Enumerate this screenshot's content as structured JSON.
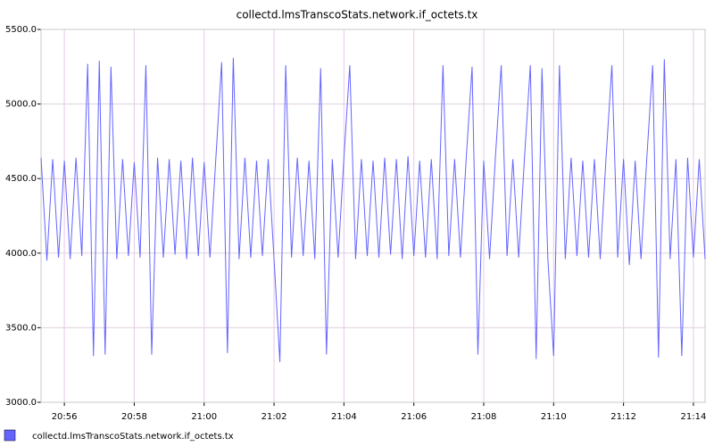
{
  "chart_data": {
    "type": "line",
    "title": "collectd.lmsTranscoStats.network.if_octets.tx",
    "categories": [
      null,
      null,
      null,
      null,
      "20:56",
      null,
      null,
      null,
      null,
      null,
      null,
      null,
      null,
      null,
      null,
      null,
      "20:58",
      null,
      null,
      null,
      null,
      null,
      null,
      null,
      null,
      null,
      null,
      null,
      "21:00",
      null,
      null,
      null,
      null,
      null,
      null,
      null,
      null,
      null,
      null,
      null,
      "21:02",
      null,
      null,
      null,
      null,
      null,
      null,
      null,
      null,
      null,
      null,
      null,
      "21:04",
      null,
      null,
      null,
      null,
      null,
      null,
      null,
      null,
      null,
      null,
      null,
      "21:06",
      null,
      null,
      null,
      null,
      null,
      null,
      null,
      null,
      null,
      null,
      null,
      "21:08",
      null,
      null,
      null,
      null,
      null,
      null,
      null,
      null,
      null,
      null,
      null,
      "21:10",
      null,
      null,
      null,
      null,
      null,
      null,
      null,
      null,
      null,
      null,
      null,
      "21:12",
      null,
      null,
      null,
      null,
      null,
      null,
      null,
      null,
      null,
      null,
      null,
      "21:14",
      null,
      null
    ],
    "series": [
      {
        "name": "collectd.lmsTranscoStats.network.if_octets.tx",
        "color": "#6464ff",
        "values": [
          4640,
          3950,
          4630,
          3970,
          4620,
          3960,
          4640,
          3980,
          5270,
          3310,
          5290,
          3320,
          5250,
          3960,
          4630,
          3980,
          4610,
          3970,
          5260,
          3320,
          4640,
          3970,
          4630,
          3990,
          4620,
          3960,
          4640,
          3980,
          4610,
          3970,
          4630,
          5280,
          3330,
          5310,
          3960,
          4640,
          3970,
          4620,
          3980,
          4630,
          3960,
          3270,
          5260,
          3970,
          4640,
          3980,
          4620,
          3960,
          5240,
          3320,
          4630,
          3970,
          4640,
          5260,
          3960,
          4630,
          3980,
          4620,
          3970,
          4640,
          3990,
          4630,
          3960,
          4650,
          3980,
          4620,
          3970,
          4630,
          3960,
          5260,
          3980,
          4630,
          3970,
          4640,
          5250,
          3320,
          4620,
          3960,
          4640,
          5260,
          3980,
          4630,
          3970,
          4640,
          5260,
          3290,
          5240,
          3970,
          3310,
          5260,
          3960,
          4640,
          3980,
          4620,
          3970,
          4630,
          3960,
          4640,
          5260,
          3970,
          4630,
          3920,
          4620,
          3960,
          4640,
          5260,
          3300,
          5300,
          3960,
          4630,
          3310,
          4640,
          3970,
          4630,
          3960
        ]
      }
    ],
    "ylim": [
      3000,
      5500
    ],
    "yticks": [
      {
        "value": 3000,
        "label": "3000.0"
      },
      {
        "value": 3500,
        "label": "3500.0"
      },
      {
        "value": 4000,
        "label": "4000.0"
      },
      {
        "value": 4500,
        "label": "4500.0"
      },
      {
        "value": 5000,
        "label": "5000.0"
      },
      {
        "value": 5500,
        "label": "5500.0"
      }
    ],
    "grid": true
  }
}
